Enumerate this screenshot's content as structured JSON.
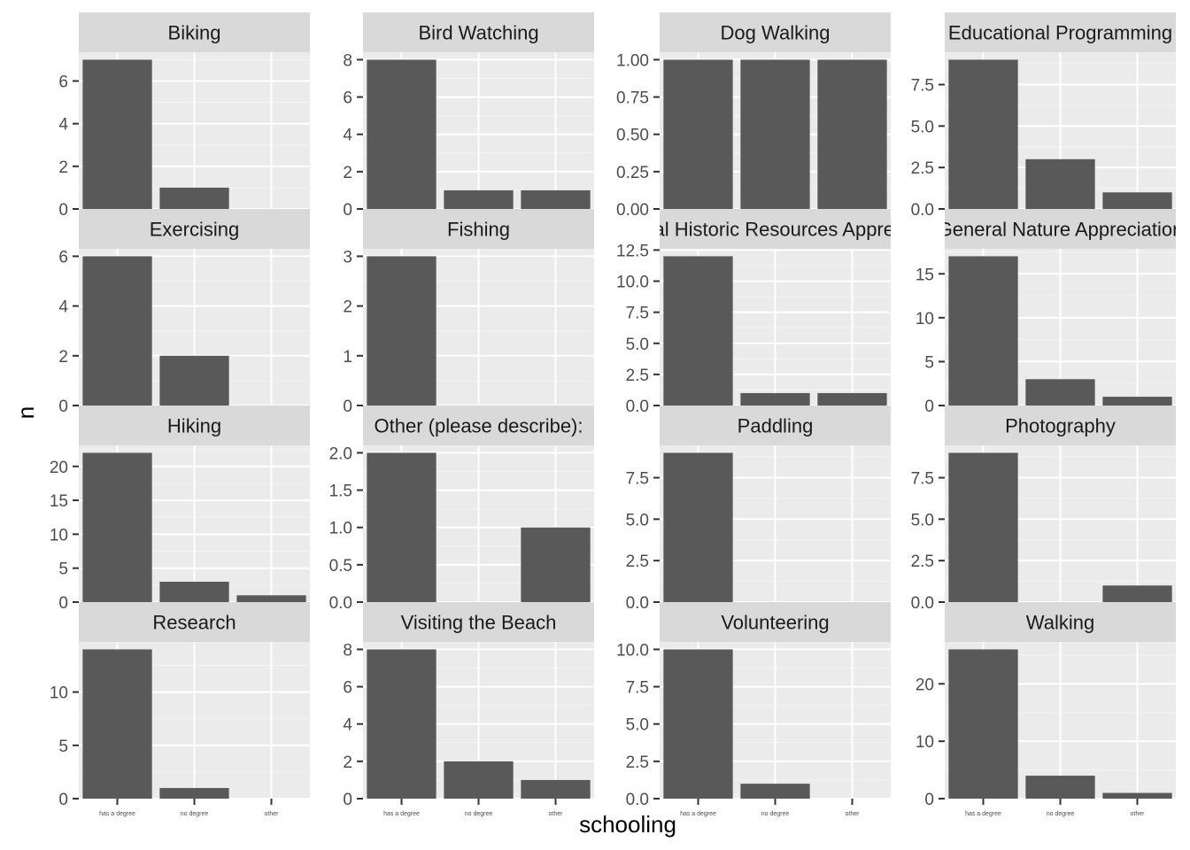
{
  "chart_data": {
    "type": "bar",
    "xlabel": "schooling",
    "ylabel": "n",
    "categories": [
      "has a degree",
      "no degree",
      "other"
    ],
    "colors": {
      "bar": "#595959",
      "panel": "#ebebeb",
      "strip": "#d9d9d9",
      "grid_major": "#ffffff",
      "grid_minor": "#f4f4f4"
    },
    "panels": [
      {
        "name": "Biking",
        "values": [
          7,
          1,
          0
        ],
        "ylim": [
          0,
          7.35
        ],
        "ticks": [
          0,
          2,
          4,
          6
        ],
        "tick_labels": [
          "0",
          "2",
          "4",
          "6"
        ]
      },
      {
        "name": "Bird Watching",
        "values": [
          8,
          1,
          1
        ],
        "ylim": [
          0,
          8.4
        ],
        "ticks": [
          0,
          2,
          4,
          6,
          8
        ],
        "tick_labels": [
          "0",
          "2",
          "4",
          "6",
          "8"
        ]
      },
      {
        "name": "Dog Walking",
        "values": [
          1,
          1,
          1
        ],
        "ylim": [
          0,
          1.05
        ],
        "ticks": [
          0,
          0.25,
          0.5,
          0.75,
          1
        ],
        "tick_labels": [
          "0.00",
          "0.25",
          "0.50",
          "0.75",
          "1.00"
        ]
      },
      {
        "name": "Educational Programming",
        "values": [
          9,
          3,
          1
        ],
        "ylim": [
          0,
          9.45
        ],
        "ticks": [
          0,
          2.5,
          5,
          7.5
        ],
        "tick_labels": [
          "0.0",
          "2.5",
          "5.0",
          "7.5"
        ]
      },
      {
        "name": "Exercising",
        "values": [
          6,
          2,
          0
        ],
        "ylim": [
          0,
          6.3
        ],
        "ticks": [
          0,
          2,
          4,
          6
        ],
        "tick_labels": [
          "0",
          "2",
          "4",
          "6"
        ]
      },
      {
        "name": "Fishing",
        "values": [
          3,
          0,
          0
        ],
        "ylim": [
          0,
          3.15
        ],
        "ticks": [
          0,
          1,
          2,
          3
        ],
        "tick_labels": [
          "0",
          "1",
          "2",
          "3"
        ]
      },
      {
        "name": "General Historic Resources Appreciation",
        "values": [
          12,
          1,
          1
        ],
        "ylim": [
          0,
          12.6
        ],
        "ticks": [
          0,
          2.5,
          5,
          7.5,
          10,
          12.5
        ],
        "tick_labels": [
          "0.0",
          "2.5",
          "5.0",
          "7.5",
          "10.0",
          "12.5"
        ]
      },
      {
        "name": "General Nature Appreciation",
        "values": [
          17,
          3,
          1
        ],
        "ylim": [
          0,
          17.85
        ],
        "ticks": [
          0,
          5,
          10,
          15
        ],
        "tick_labels": [
          "0",
          "5",
          "10",
          "15"
        ]
      },
      {
        "name": "Hiking",
        "values": [
          22,
          3,
          1
        ],
        "ylim": [
          0,
          23.1
        ],
        "ticks": [
          0,
          5,
          10,
          15,
          20
        ],
        "tick_labels": [
          "0",
          "5",
          "10",
          "15",
          "20"
        ]
      },
      {
        "name": "Other (please describe):",
        "values": [
          2,
          0,
          1
        ],
        "ylim": [
          0,
          2.1
        ],
        "ticks": [
          0,
          0.5,
          1,
          1.5,
          2
        ],
        "tick_labels": [
          "0.0",
          "0.5",
          "1.0",
          "1.5",
          "2.0"
        ]
      },
      {
        "name": "Paddling",
        "values": [
          9,
          0,
          0
        ],
        "ylim": [
          0,
          9.45
        ],
        "ticks": [
          0,
          2.5,
          5,
          7.5
        ],
        "tick_labels": [
          "0.0",
          "2.5",
          "5.0",
          "7.5"
        ]
      },
      {
        "name": "Photography",
        "values": [
          9,
          0,
          1
        ],
        "ylim": [
          0,
          9.45
        ],
        "ticks": [
          0,
          2.5,
          5,
          7.5
        ],
        "tick_labels": [
          "0.0",
          "2.5",
          "5.0",
          "7.5"
        ]
      },
      {
        "name": "Research",
        "values": [
          14,
          1,
          0
        ],
        "ylim": [
          0,
          14.7
        ],
        "ticks": [
          0,
          5,
          10
        ],
        "tick_labels": [
          "0",
          "5",
          "10"
        ]
      },
      {
        "name": "Visiting the Beach",
        "values": [
          8,
          2,
          1
        ],
        "ylim": [
          0,
          8.4
        ],
        "ticks": [
          0,
          2,
          4,
          6,
          8
        ],
        "tick_labels": [
          "0",
          "2",
          "4",
          "6",
          "8"
        ]
      },
      {
        "name": "Volunteering",
        "values": [
          10,
          1,
          0
        ],
        "ylim": [
          0,
          10.5
        ],
        "ticks": [
          0,
          2.5,
          5,
          7.5,
          10
        ],
        "tick_labels": [
          "0.0",
          "2.5",
          "5.0",
          "7.5",
          "10.0"
        ]
      },
      {
        "name": "Walking",
        "values": [
          26,
          4,
          1
        ],
        "ylim": [
          0,
          27.3
        ],
        "ticks": [
          0,
          10,
          20
        ],
        "tick_labels": [
          "0",
          "10",
          "20"
        ]
      }
    ]
  }
}
